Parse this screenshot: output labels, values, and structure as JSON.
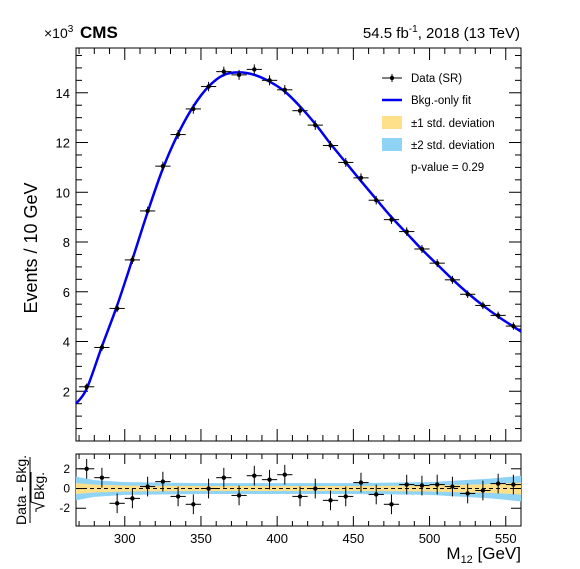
{
  "header": {
    "multiplier_base": "×10",
    "multiplier_exp": "3",
    "experiment": "CMS",
    "lumi_prefix": "54.5 fb",
    "lumi_exp": "-1",
    "lumi_suffix": ", 2018 (13 TeV)"
  },
  "axes": {
    "ylabel": "Events / 10 GeV",
    "xlabel_main": "M",
    "xlabel_sub": "12",
    "xlabel_unit": " [GeV]",
    "ratio_ylabel_num": "Data - Bkg.",
    "ratio_ylabel_den": "Bkg."
  },
  "legend": {
    "data": "Data (SR)",
    "fit": "Bkg.-only fit",
    "sigma1": "±1 std. deviation",
    "sigma2": "±2 std. deviation",
    "pvalue": "p-value = 0.29"
  },
  "colors": {
    "fit": "#0000ee",
    "sigma1": "#ffe08a",
    "sigma2": "#8fd3f5",
    "data": "#000000"
  },
  "chart_data": [
    {
      "type": "scatter",
      "title": "",
      "xlabel": "M12 [GeV]",
      "ylabel": "Events / 10 GeV",
      "y_multiplier": 1000,
      "xlim": [
        268,
        560
      ],
      "ylim": [
        0,
        15.8
      ],
      "xticks": [
        300,
        350,
        400,
        450,
        500,
        550
      ],
      "yticks": [
        2,
        4,
        6,
        8,
        10,
        12,
        14
      ],
      "bin_width": 10,
      "series": [
        {
          "name": "Data (SR)",
          "x": [
            275,
            285,
            295,
            305,
            315,
            325,
            335,
            345,
            355,
            365,
            375,
            385,
            395,
            405,
            415,
            425,
            435,
            445,
            455,
            465,
            475,
            485,
            495,
            505,
            515,
            525,
            535,
            545,
            555
          ],
          "y": [
            2.18,
            3.76,
            5.33,
            7.28,
            9.25,
            11.05,
            12.32,
            13.35,
            14.25,
            14.85,
            14.72,
            14.94,
            14.5,
            14.12,
            13.28,
            12.7,
            11.88,
            11.2,
            10.58,
            9.68,
            8.9,
            8.42,
            7.72,
            7.15,
            6.48,
            5.9,
            5.45,
            5.05,
            4.62
          ],
          "yerr": [
            0.05,
            0.06,
            0.07,
            0.08,
            0.09,
            0.1,
            0.1,
            0.11,
            0.11,
            0.12,
            0.12,
            0.12,
            0.12,
            0.11,
            0.11,
            0.11,
            0.1,
            0.1,
            0.1,
            0.09,
            0.09,
            0.09,
            0.08,
            0.08,
            0.08,
            0.07,
            0.07,
            0.07,
            0.07
          ]
        },
        {
          "name": "Bkg.-only fit",
          "type": "line",
          "x": [
            268,
            275,
            285,
            295,
            305,
            315,
            325,
            335,
            345,
            355,
            365,
            375,
            385,
            395,
            405,
            415,
            425,
            435,
            445,
            455,
            465,
            475,
            485,
            495,
            505,
            515,
            525,
            535,
            545,
            555,
            560
          ],
          "y": [
            1.5,
            2.1,
            3.8,
            5.45,
            7.3,
            9.2,
            10.95,
            12.35,
            13.45,
            14.25,
            14.72,
            14.82,
            14.72,
            14.45,
            14.05,
            13.45,
            12.75,
            11.95,
            11.2,
            10.45,
            9.72,
            9.0,
            8.35,
            7.7,
            7.1,
            6.5,
            5.95,
            5.45,
            5.0,
            4.6,
            4.4
          ]
        }
      ]
    },
    {
      "type": "scatter",
      "title": "",
      "xlabel": "M12 [GeV]",
      "ylabel": "Data - Bkg. / sqrt(Bkg.)",
      "xlim": [
        268,
        560
      ],
      "ylim": [
        -3.8,
        3.5
      ],
      "xticks": [
        300,
        350,
        400,
        450,
        500,
        550
      ],
      "yticks": [
        -2,
        0,
        2
      ],
      "series": [
        {
          "name": "Data (SR)",
          "x": [
            275,
            285,
            295,
            305,
            315,
            325,
            335,
            345,
            355,
            365,
            375,
            385,
            395,
            405,
            415,
            425,
            435,
            445,
            455,
            465,
            475,
            485,
            495,
            505,
            515,
            525,
            535,
            545,
            555
          ],
          "y": [
            2.0,
            1.1,
            -1.5,
            -1.0,
            0.2,
            0.7,
            -0.8,
            -1.6,
            0.0,
            1.1,
            -0.7,
            1.3,
            0.9,
            1.4,
            -0.8,
            0.0,
            -1.2,
            -0.8,
            0.6,
            -0.6,
            -1.6,
            0.4,
            0.3,
            0.4,
            0.2,
            -0.5,
            -0.2,
            0.5,
            0.4
          ],
          "yerr": [
            1.0,
            1.0,
            1.0,
            1.0,
            1.0,
            1.0,
            1.0,
            1.0,
            1.0,
            1.0,
            1.0,
            1.0,
            1.0,
            1.0,
            1.0,
            1.0,
            1.0,
            1.0,
            1.0,
            1.0,
            1.0,
            1.0,
            1.0,
            1.0,
            1.0,
            1.0,
            1.0,
            1.0,
            1.0
          ]
        },
        {
          "name": "±1 std. deviation",
          "type": "area",
          "x": [
            268,
            280,
            300,
            350,
            400,
            450,
            500,
            540,
            560
          ],
          "y_low": [
            -0.55,
            -0.4,
            -0.3,
            -0.25,
            -0.25,
            -0.25,
            -0.3,
            -0.45,
            -0.6
          ],
          "y_high": [
            0.55,
            0.4,
            0.3,
            0.25,
            0.25,
            0.25,
            0.3,
            0.45,
            0.6
          ]
        },
        {
          "name": "±2 std. deviation",
          "type": "area",
          "x": [
            268,
            280,
            300,
            350,
            400,
            450,
            500,
            540,
            560
          ],
          "y_low": [
            -1.2,
            -0.85,
            -0.65,
            -0.55,
            -0.55,
            -0.55,
            -0.65,
            -1.0,
            -1.3
          ],
          "y_high": [
            1.2,
            0.85,
            0.65,
            0.55,
            0.55,
            0.55,
            0.65,
            1.0,
            1.3
          ]
        }
      ]
    }
  ]
}
